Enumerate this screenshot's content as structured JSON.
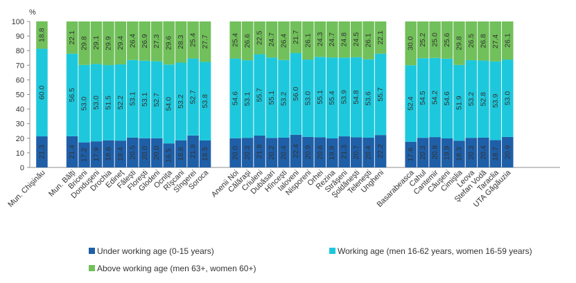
{
  "chart_data": {
    "type": "bar",
    "stacked": true,
    "y_unit_label": "%",
    "ylim": [
      0,
      100
    ],
    "yticks": [
      0,
      10,
      20,
      30,
      40,
      50,
      60,
      70,
      80,
      90,
      100
    ],
    "grid": false,
    "legend_position": "bottom",
    "groups": [
      {
        "categories": [
          "Mun. Chişinău"
        ]
      },
      {
        "categories": [
          "Mun. Bălţi",
          "Briceni",
          "Donduşeni",
          "Drochia",
          "Edineţ",
          "Făleşti",
          "Floreşti",
          "Glodeni",
          "Ocniţa",
          "Rîşcani",
          "Sîngerei",
          "Soroca"
        ]
      },
      {
        "categories": [
          "Anenii Noi",
          "Călăraşi",
          "Criuleni",
          "Dubăsari",
          "Hînceşti",
          "Ialoveni",
          "Nisporeni",
          "Orhei",
          "Rezina",
          "Străşeni",
          "Şoldăneşti",
          "Teleneşti",
          "Ungheni"
        ]
      },
      {
        "categories": [
          "Basarabeasca",
          "Cahul",
          "Cantemir",
          "Căuşeni",
          "Cimişlia",
          "Leova",
          "Ştefan Vodă",
          "Taraclia",
          "UTA Găgăuzia"
        ]
      }
    ],
    "series": [
      {
        "name": "Under working age (0-15 years)",
        "color": "#1f5fa8",
        "values": [
          21.3,
          21.4,
          17.2,
          17.9,
          18.6,
          18.4,
          20.5,
          20.0,
          20.0,
          16.5,
          18.6,
          21.9,
          18.5,
          20.0,
          20.3,
          21.8,
          20.2,
          20.4,
          22.4,
          20.9,
          20.6,
          19.9,
          21.3,
          20.7,
          20.4,
          22.2,
          17.6,
          20.3,
          20.8,
          19.9,
          18.3,
          20.3,
          20.4,
          18.7,
          20.9
        ],
        "labels": [
          "21.3",
          "21.4",
          "17.2",
          "17.9",
          "18.6",
          "18.4",
          "20.5",
          "20.0",
          "20.0",
          "16.5",
          "18.6",
          "21.9",
          "18.5",
          "20.0",
          "20.3",
          "21.8",
          "20.2",
          "20.4",
          "22.4",
          "20.9",
          "20.6",
          "19.9",
          "21.3",
          "20.7",
          "20.4",
          "22.2",
          "17.6",
          "20.3",
          "20.8",
          "19.9",
          "18.3",
          "20.3",
          "20.4",
          "18.7",
          "20.9"
        ]
      },
      {
        "name": "Working age (men 16-62 years, women 16-59 years)",
        "color": "#1ec8dc",
        "values": [
          60.0,
          56.5,
          53.0,
          53.0,
          51.5,
          52.2,
          53.1,
          53.1,
          52.7,
          54.0,
          53.2,
          52.7,
          53.8,
          54.6,
          53.1,
          55.7,
          55.1,
          53.2,
          56.0,
          53.0,
          55.1,
          55.4,
          53.9,
          54.8,
          53.6,
          55.7,
          52.4,
          54.5,
          54.2,
          54.6,
          51.9,
          53.2,
          52.8,
          53.9,
          53.0
        ],
        "labels": [
          "60.0",
          "56.5",
          "53.0",
          "53.0",
          "51.5",
          "52.2",
          "53.1",
          "53.1",
          "52.7",
          "54.0",
          "53.2",
          "52.7",
          "53.8",
          "54.6",
          "53.1",
          "55.7",
          "55.1",
          "53.2",
          "56.0",
          "53.0",
          "55.1",
          "55.4",
          "53.9",
          "54.8",
          "53.6",
          "55.7",
          "52.4",
          "54.5",
          "54.2",
          "54.6",
          "51.9",
          "53.2",
          "52.8",
          "53.9",
          "53.0"
        ]
      },
      {
        "name": "Above working age (men 63+, women 60+)",
        "color": "#72c05b",
        "values": [
          18.8,
          22.1,
          29.8,
          29.1,
          29.9,
          29.4,
          26.4,
          26.9,
          27.3,
          29.6,
          28.3,
          25.4,
          27.7,
          25.4,
          26.6,
          22.5,
          24.7,
          26.4,
          21.7,
          26.1,
          24.3,
          24.7,
          24.8,
          24.5,
          26.1,
          22.1,
          30.0,
          25.2,
          25.0,
          25.6,
          29.8,
          26.5,
          26.8,
          27.4,
          26.1
        ],
        "labels": [
          "18.8",
          "22.1",
          "29.8",
          "29.1",
          "29.9",
          "29.4",
          "26.4",
          "26.9",
          "27.3",
          "29.6",
          "28.3",
          "25.4",
          "27.7",
          "25.4",
          "26.6",
          "22.5",
          "24.7",
          "26.4",
          "21.7",
          "26.1",
          "24.3",
          "24.7",
          "24.8",
          "24.5",
          "26.1",
          "22.1",
          "30.0",
          "25.2",
          "25.0",
          "25.6",
          "29.8",
          "26.5",
          "26.8",
          "27.4",
          "26.1"
        ]
      }
    ],
    "axis_color": "#8c8c8c",
    "text_color": "#333333"
  }
}
